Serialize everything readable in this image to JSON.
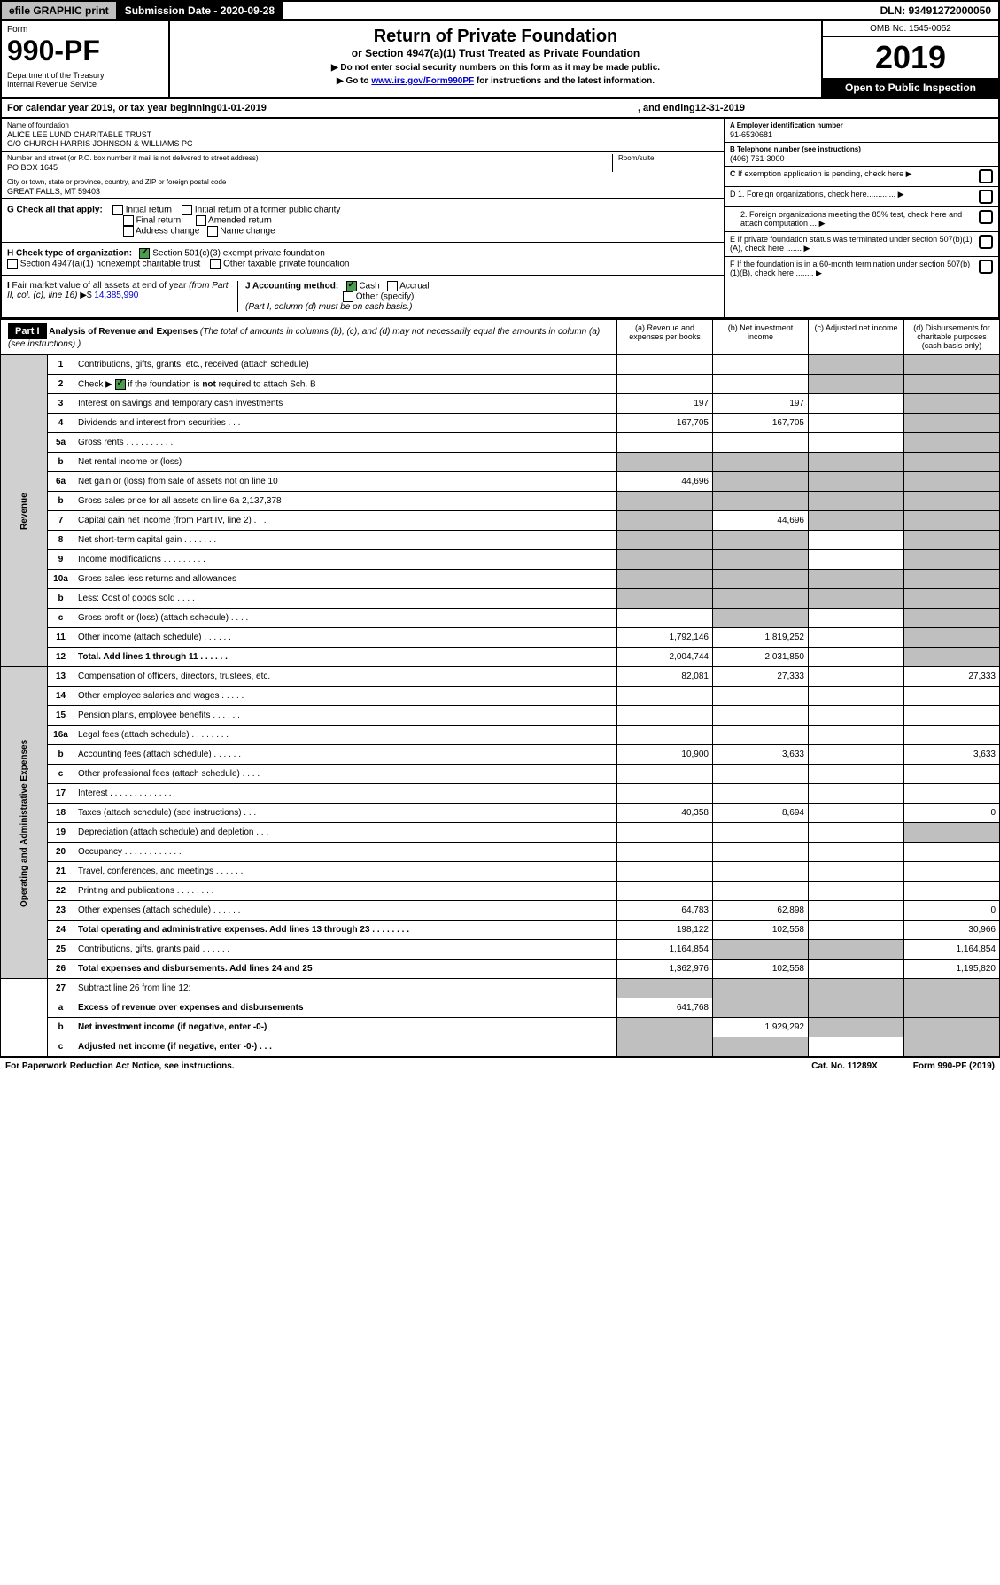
{
  "top": {
    "efile": "efile GRAPHIC print",
    "sub_date_label": "Submission Date - 2020-09-28",
    "dln": "DLN: 93491272000050"
  },
  "header": {
    "form_label": "Form",
    "form_num": "990-PF",
    "dept": "Department of the Treasury\nInternal Revenue Service",
    "title": "Return of Private Foundation",
    "subtitle": "or Section 4947(a)(1) Trust Treated as Private Foundation",
    "instr1": "▶ Do not enter social security numbers on this form as it may be made public.",
    "instr2": "▶ Go to www.irs.gov/Form990PF for instructions and the latest information.",
    "instr2_link": "www.irs.gov/Form990PF",
    "omb": "OMB No. 1545-0052",
    "year": "2019",
    "open_pub": "Open to Public Inspection"
  },
  "cal_year": {
    "prefix": "For calendar year 2019, or tax year beginning ",
    "begin": "01-01-2019",
    "mid": ", and ending ",
    "end": "12-31-2019"
  },
  "foundation": {
    "name_label": "Name of foundation",
    "name": "ALICE LEE LUND CHARITABLE TRUST\nC/O CHURCH HARRIS JOHNSON & WILLIAMS PC",
    "addr_label": "Number and street (or P.O. box number if mail is not delivered to street address)",
    "room_label": "Room/suite",
    "addr": "PO BOX 1645",
    "city_label": "City or town, state or province, country, and ZIP or foreign postal code",
    "city": "GREAT FALLS, MT  59403",
    "ein_label": "A Employer identification number",
    "ein": "91-6530681",
    "phone_label": "B Telephone number (see instructions)",
    "phone": "(406) 761-3000",
    "c_label": "C If exemption application is pending, check here",
    "d1_label": "D 1. Foreign organizations, check here.............",
    "d2_label": "2. Foreign organizations meeting the 85% test, check here and attach computation ...",
    "e_label": "E  If private foundation status was terminated under section 507(b)(1)(A), check here .......",
    "f_label": "F  If the foundation is in a 60-month termination under section 507(b)(1)(B), check here ........"
  },
  "checks": {
    "g_label": "G Check all that apply:",
    "initial": "Initial return",
    "initial_former": "Initial return of a former public charity",
    "final": "Final return",
    "amended": "Amended return",
    "addr_change": "Address change",
    "name_change": "Name change",
    "h_label": "H Check type of organization:",
    "h1": "Section 501(c)(3) exempt private foundation",
    "h2": "Section 4947(a)(1) nonexempt charitable trust",
    "h3": "Other taxable private foundation",
    "i_label": "I Fair market value of all assets at end of year (from Part II, col. (c), line 16) ▶$",
    "i_val": "14,385,990",
    "j_label": "J Accounting method:",
    "j_cash": "Cash",
    "j_accrual": "Accrual",
    "j_other": "Other (specify)",
    "j_note": "(Part I, column (d) must be on cash basis.)"
  },
  "part1": {
    "label": "Part I",
    "title": "Analysis of Revenue and Expenses",
    "title_note": "(The total of amounts in columns (b), (c), and (d) may not necessarily equal the amounts in column (a) (see instructions).)",
    "col_a": "(a)   Revenue and expenses per books",
    "col_b": "(b)  Net investment income",
    "col_c": "(c)  Adjusted net income",
    "col_d": "(d)  Disbursements for charitable purposes (cash basis only)",
    "revenue_label": "Revenue",
    "expenses_label": "Operating and Administrative Expenses"
  },
  "rows": [
    {
      "n": "1",
      "d": "Contributions, gifts, grants, etc., received (attach schedule)",
      "a": "",
      "b": "",
      "c": "s",
      "ds": "s"
    },
    {
      "n": "2",
      "d": "Check ▶ ☑ if the foundation is not required to attach Sch. B",
      "a": "",
      "b": "",
      "c": "s",
      "ds": "s",
      "check": true
    },
    {
      "n": "3",
      "d": "Interest on savings and temporary cash investments",
      "a": "197",
      "b": "197",
      "c": "",
      "ds": "s"
    },
    {
      "n": "4",
      "d": "Dividends and interest from securities   .   .   .",
      "a": "167,705",
      "b": "167,705",
      "c": "",
      "ds": "s"
    },
    {
      "n": "5a",
      "d": "Gross rents    .   .   .   .   .   .   .   .   .   .",
      "a": "",
      "b": "",
      "c": "",
      "ds": "s"
    },
    {
      "n": "b",
      "d": "Net rental income or (loss)  ",
      "a": "s",
      "b": "s",
      "c": "s",
      "ds": "s"
    },
    {
      "n": "6a",
      "d": "Net gain or (loss) from sale of assets not on line 10",
      "a": "44,696",
      "b": "s",
      "c": "s",
      "ds": "s"
    },
    {
      "n": "b",
      "d": "Gross sales price for all assets on line 6a           2,137,378",
      "a": "s",
      "b": "s",
      "c": "s",
      "ds": "s"
    },
    {
      "n": "7",
      "d": "Capital gain net income (from Part IV, line 2)   .   .   .",
      "a": "s",
      "b": "44,696",
      "c": "s",
      "ds": "s"
    },
    {
      "n": "8",
      "d": "Net short-term capital gain   .   .   .   .   .   .   .",
      "a": "s",
      "b": "s",
      "c": "",
      "ds": "s"
    },
    {
      "n": "9",
      "d": "Income modifications  .   .   .   .   .   .   .   .   .",
      "a": "s",
      "b": "s",
      "c": "",
      "ds": "s"
    },
    {
      "n": "10a",
      "d": "Gross sales less returns and allowances",
      "a": "s",
      "b": "s",
      "c": "s",
      "ds": "s"
    },
    {
      "n": "b",
      "d": "Less: Cost of goods sold     .   .   .   .",
      "a": "s",
      "b": "s",
      "c": "s",
      "ds": "s"
    },
    {
      "n": "c",
      "d": "Gross profit or (loss) (attach schedule)   .   .   .   .   .",
      "a": "",
      "b": "s",
      "c": "",
      "ds": "s"
    },
    {
      "n": "11",
      "d": "Other income (attach schedule)   .   .   .   .   .   .",
      "a": "1,792,146",
      "b": "1,819,252",
      "c": "",
      "ds": "s"
    },
    {
      "n": "12",
      "d": "Total. Add lines 1 through 11   .   .   .   .   .   .",
      "a": "2,004,744",
      "b": "2,031,850",
      "c": "",
      "ds": "s",
      "bold": true
    }
  ],
  "exp_rows": [
    {
      "n": "13",
      "d": "Compensation of officers, directors, trustees, etc.",
      "a": "82,081",
      "b": "27,333",
      "c": "",
      "ds": "27,333"
    },
    {
      "n": "14",
      "d": "Other employee salaries and wages   .   .   .   .   .",
      "a": "",
      "b": "",
      "c": "",
      "ds": ""
    },
    {
      "n": "15",
      "d": "Pension plans, employee benefits   .   .   .   .   .   .",
      "a": "",
      "b": "",
      "c": "",
      "ds": ""
    },
    {
      "n": "16a",
      "d": "Legal fees (attach schedule)  .   .   .   .   .   .   .   .",
      "a": "",
      "b": "",
      "c": "",
      "ds": ""
    },
    {
      "n": "b",
      "d": "Accounting fees (attach schedule)   .   .   .   .   .   .",
      "a": "10,900",
      "b": "3,633",
      "c": "",
      "ds": "3,633"
    },
    {
      "n": "c",
      "d": "Other professional fees (attach schedule)    .   .   .   .",
      "a": "",
      "b": "",
      "c": "",
      "ds": ""
    },
    {
      "n": "17",
      "d": "Interest   .   .   .   .   .   .   .   .   .   .   .   .   .",
      "a": "",
      "b": "",
      "c": "",
      "ds": ""
    },
    {
      "n": "18",
      "d": "Taxes (attach schedule) (see instructions)    .   .   .",
      "a": "40,358",
      "b": "8,694",
      "c": "",
      "ds": "0"
    },
    {
      "n": "19",
      "d": "Depreciation (attach schedule) and depletion    .   .   .",
      "a": "",
      "b": "",
      "c": "",
      "ds": "s"
    },
    {
      "n": "20",
      "d": "Occupancy  .   .   .   .   .   .   .   .   .   .   .   .",
      "a": "",
      "b": "",
      "c": "",
      "ds": ""
    },
    {
      "n": "21",
      "d": "Travel, conferences, and meetings   .   .   .   .   .   .",
      "a": "",
      "b": "",
      "c": "",
      "ds": ""
    },
    {
      "n": "22",
      "d": "Printing and publications  .   .   .   .   .   .   .   .",
      "a": "",
      "b": "",
      "c": "",
      "ds": ""
    },
    {
      "n": "23",
      "d": "Other expenses (attach schedule)   .   .   .   .   .   .",
      "a": "64,783",
      "b": "62,898",
      "c": "",
      "ds": "0"
    },
    {
      "n": "24",
      "d": "Total operating and administrative expenses. Add lines 13 through 23   .   .   .   .   .   .   .   .",
      "a": "198,122",
      "b": "102,558",
      "c": "",
      "ds": "30,966",
      "bold": true
    },
    {
      "n": "25",
      "d": "Contributions, gifts, grants paid    .   .   .   .   .   .",
      "a": "1,164,854",
      "b": "s",
      "c": "s",
      "ds": "1,164,854"
    },
    {
      "n": "26",
      "d": "Total expenses and disbursements. Add lines 24 and 25",
      "a": "1,362,976",
      "b": "102,558",
      "c": "",
      "ds": "1,195,820",
      "bold": true
    }
  ],
  "final_rows": [
    {
      "n": "27",
      "d": "Subtract line 26 from line 12:",
      "a": "s",
      "b": "s",
      "c": "s",
      "ds": "s"
    },
    {
      "n": "a",
      "d": "Excess of revenue over expenses and disbursements",
      "a": "641,768",
      "b": "s",
      "c": "s",
      "ds": "s",
      "bold": true
    },
    {
      "n": "b",
      "d": "Net investment income (if negative, enter -0-)",
      "a": "s",
      "b": "1,929,292",
      "c": "s",
      "ds": "s",
      "bold": true
    },
    {
      "n": "c",
      "d": "Adjusted net income (if negative, enter -0-)   .   .   .",
      "a": "s",
      "b": "s",
      "c": "",
      "ds": "s",
      "bold": true
    }
  ],
  "footer": {
    "left": "For Paperwork Reduction Act Notice, see instructions.",
    "mid": "Cat. No. 11289X",
    "right": "Form 990-PF (2019)"
  }
}
